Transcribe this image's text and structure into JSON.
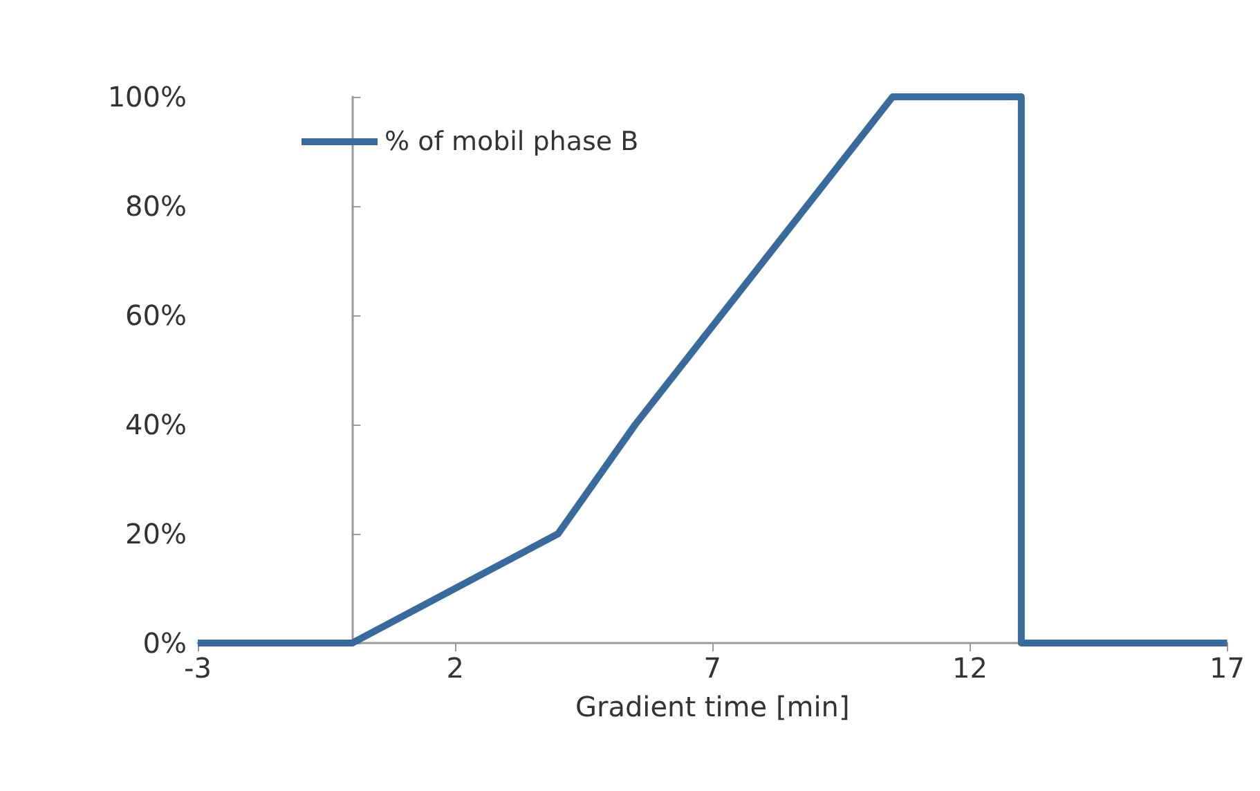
{
  "chart_data": {
    "type": "line",
    "xlabel": "Gradient time [min]",
    "x": [
      -3,
      0,
      4,
      5.5,
      10.5,
      13,
      13,
      17
    ],
    "series": [
      {
        "name": "% of mobil phase B",
        "color": "#3a6a9c",
        "values": [
          0,
          0,
          20,
          40,
          100,
          100,
          0,
          0
        ]
      }
    ],
    "xlim": [
      -3,
      17
    ],
    "xticks": [
      -3,
      2,
      7,
      12,
      17
    ],
    "ylim": [
      0,
      100
    ],
    "yticks": [
      {
        "value": 0,
        "label": "0%"
      },
      {
        "value": 20,
        "label": "20%"
      },
      {
        "value": 40,
        "label": "40%"
      },
      {
        "value": 60,
        "label": "60%"
      },
      {
        "value": 80,
        "label": "80%"
      },
      {
        "value": 100,
        "label": "100%"
      }
    ],
    "grid": false,
    "legend": "top left",
    "marker": "none",
    "line_style": "solid"
  }
}
